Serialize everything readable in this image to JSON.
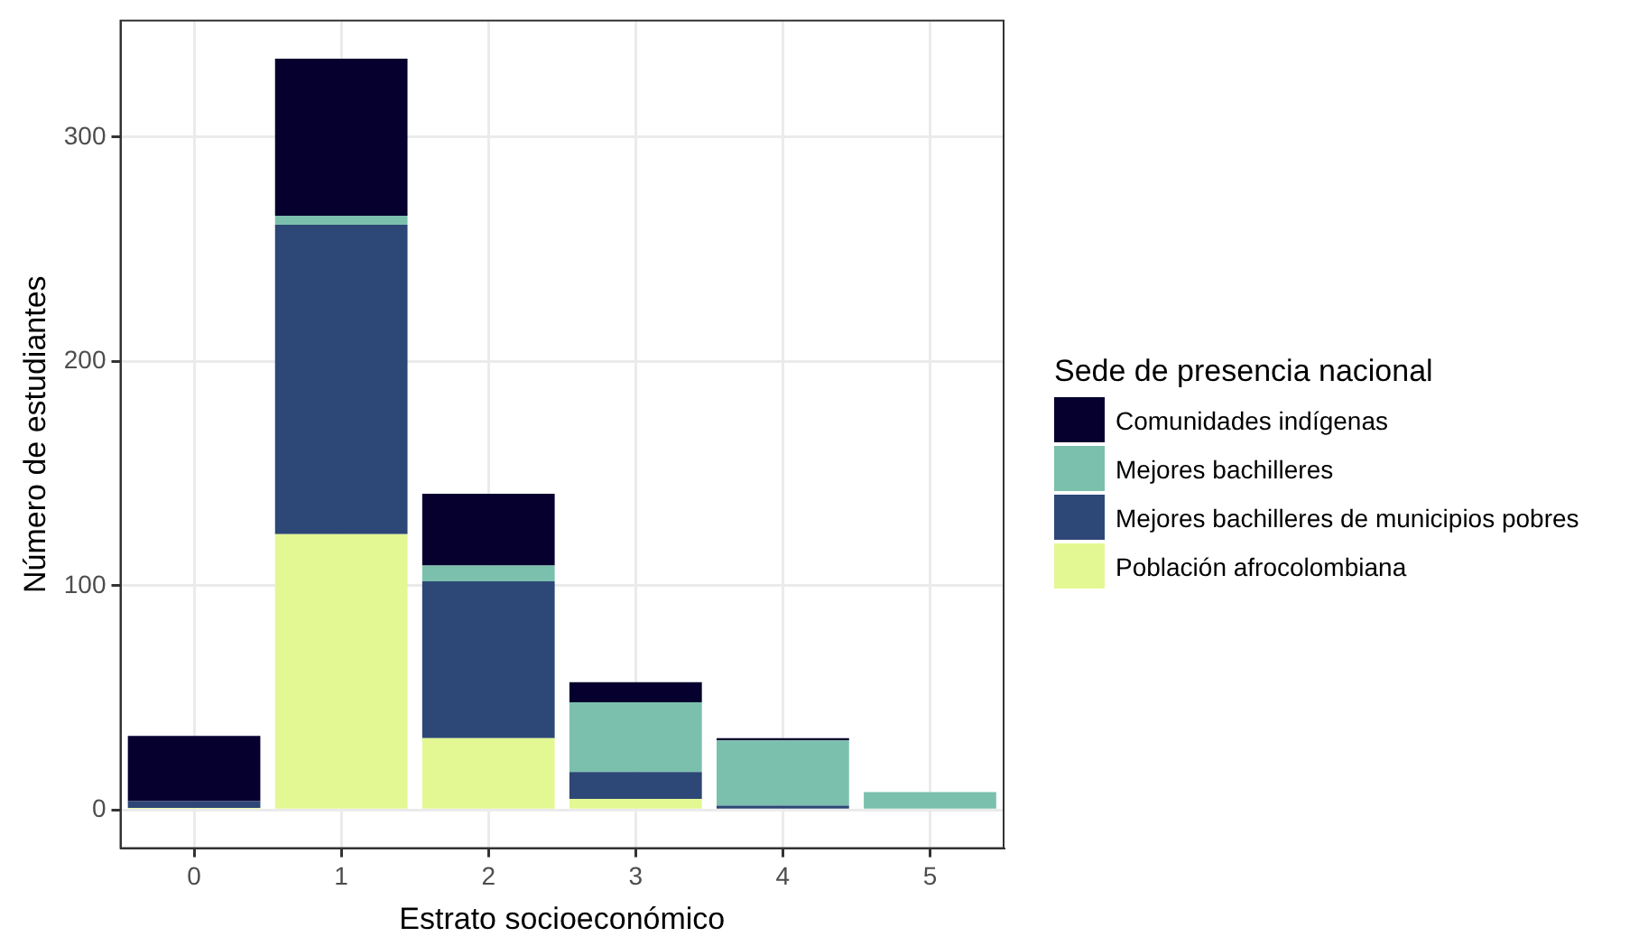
{
  "chart_data": {
    "type": "bar",
    "stacked": true,
    "xlabel": "Estrato socioeconómico",
    "ylabel": "Número de estudiantes",
    "legend_title": "Sede de presencia nacional",
    "legend": "right",
    "grid": true,
    "categories": [
      "0",
      "1",
      "2",
      "3",
      "4",
      "5"
    ],
    "ylim": [
      -17,
      352
    ],
    "yticks": [
      0,
      100,
      200,
      300
    ],
    "series": [
      {
        "name": "Población afrocolombiana",
        "color": "#e3f893",
        "values": [
          1,
          123,
          32,
          5,
          0,
          0
        ]
      },
      {
        "name": "Mejores bachilleres de municipios pobres",
        "color": "#2d4776",
        "values": [
          3,
          138,
          70,
          12,
          2,
          0
        ]
      },
      {
        "name": "Mejores bachilleres",
        "color": "#7bc0ad",
        "values": [
          0,
          4,
          7,
          31,
          29,
          8
        ]
      },
      {
        "name": "Comunidades indígenas",
        "color": "#06002f",
        "values": [
          29,
          70,
          32,
          9,
          1,
          0
        ]
      }
    ]
  }
}
